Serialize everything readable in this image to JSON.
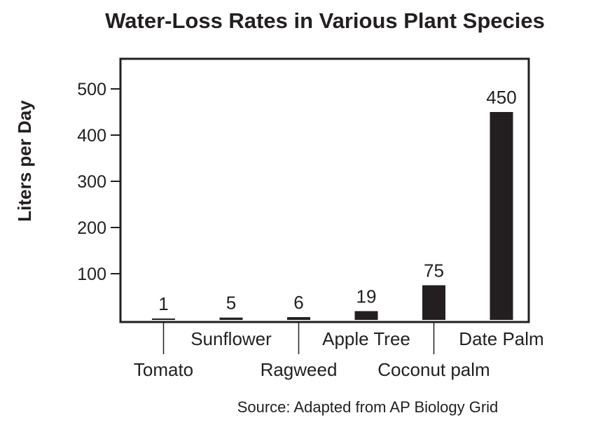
{
  "chart_data": {
    "type": "bar",
    "title": "Water-Loss Rates in Various Plant Species",
    "ylabel": "Liters per Day",
    "xlabel": "",
    "categories": [
      "Tomato",
      "Sunflower",
      "Ragweed",
      "Apple Tree",
      "Coconut palm",
      "Date Palm"
    ],
    "values": [
      1,
      5,
      6,
      19,
      75,
      450
    ],
    "data_labels": [
      "1",
      "5",
      "6",
      "19",
      "75",
      "450"
    ],
    "yticks": [
      100,
      200,
      300,
      400,
      500
    ],
    "ylim": [
      0,
      560
    ],
    "grid": false,
    "legend": "none",
    "bar_color": "#231f20",
    "source": "Source: Adapted from AP Biology Grid"
  }
}
